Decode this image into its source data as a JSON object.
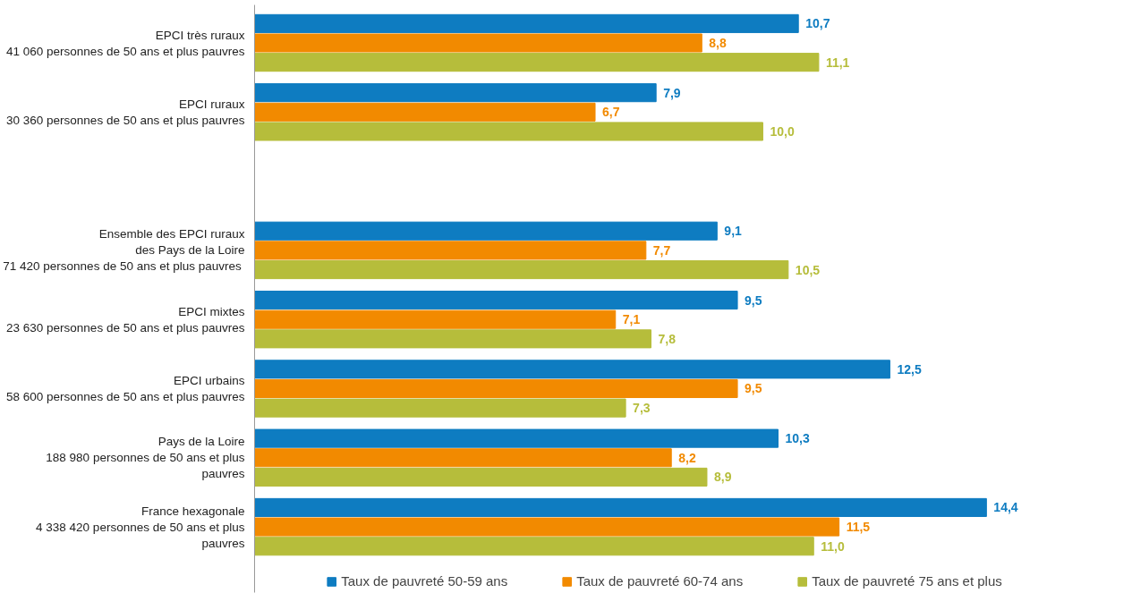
{
  "chart_data": {
    "type": "bar",
    "orientation": "horizontal",
    "legend": "bottom",
    "grid": false,
    "categories": [
      "EPCI très ruraux\n41 060 personnes de 50 ans et plus pauvres",
      "EPCI ruraux\n30 360 personnes de 50 ans et plus pauvres",
      null,
      "Ensemble des EPCI ruraux\ndes Pays de la Loire\n71 420  personnes de 50 ans et plus pauvres",
      "EPCI mixtes\n23 630 personnes de 50 ans et plus pauvres",
      "EPCI urbains\n58 600 personnes de 50 ans et plus pauvres",
      "Pays de la Loire\n188 980 personnes de 50 ans et plus\npauvres",
      "France hexagonale\n4 338 420 personnes de 50 ans et plus\npauvres"
    ],
    "series": [
      {
        "name": "Taux de pauvreté 50-59 ans",
        "color": "#0e7cc1",
        "values": [
          10.7,
          7.9,
          null,
          9.1,
          9.5,
          12.5,
          10.3,
          14.4
        ],
        "value_labels": [
          "10,7",
          "7,9",
          null,
          "9,1",
          "9,5",
          "12,5",
          "10,3",
          "14,4"
        ]
      },
      {
        "name": "Taux de pauvreté 60-74 ans",
        "color": "#f28a00",
        "values": [
          8.8,
          6.7,
          null,
          7.7,
          7.1,
          9.5,
          8.2,
          11.5
        ],
        "value_labels": [
          "8,8",
          "6,7",
          null,
          "7,7",
          "7,1",
          "9,5",
          "8,2",
          "11,5"
        ]
      },
      {
        "name": "Taux de pauvreté 75 ans et plus",
        "color": "#b6bd3b",
        "values": [
          11.1,
          10.0,
          null,
          10.5,
          7.8,
          7.3,
          8.9,
          11.0
        ],
        "value_labels": [
          "11,1",
          "10,0",
          null,
          "10,5",
          "7,8",
          "7,3",
          "8,9",
          "11,0"
        ]
      }
    ]
  }
}
